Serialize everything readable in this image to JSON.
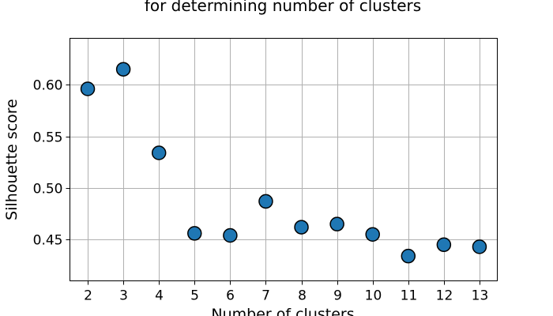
{
  "chart_data": {
    "type": "scatter",
    "title": "for determining number of clusters",
    "xlabel": "Number of clusters",
    "ylabel": "Silhouette score",
    "x": [
      2,
      3,
      4,
      5,
      6,
      7,
      8,
      9,
      10,
      11,
      12,
      13
    ],
    "y": [
      0.596,
      0.615,
      0.534,
      0.456,
      0.454,
      0.487,
      0.462,
      0.465,
      0.455,
      0.434,
      0.445,
      0.443
    ],
    "xlim": [
      1.5,
      13.5
    ],
    "ylim": [
      0.41,
      0.645
    ],
    "xticks": [
      2,
      3,
      4,
      5,
      6,
      7,
      8,
      9,
      10,
      11,
      12,
      13
    ],
    "yticks": [
      0.45,
      0.5,
      0.55,
      0.6
    ],
    "ytick_labels": [
      "0.45",
      "0.50",
      "0.55",
      "0.60"
    ],
    "grid": true,
    "marker_color": "#1f77b4",
    "marker_edge_color": "#000000"
  }
}
